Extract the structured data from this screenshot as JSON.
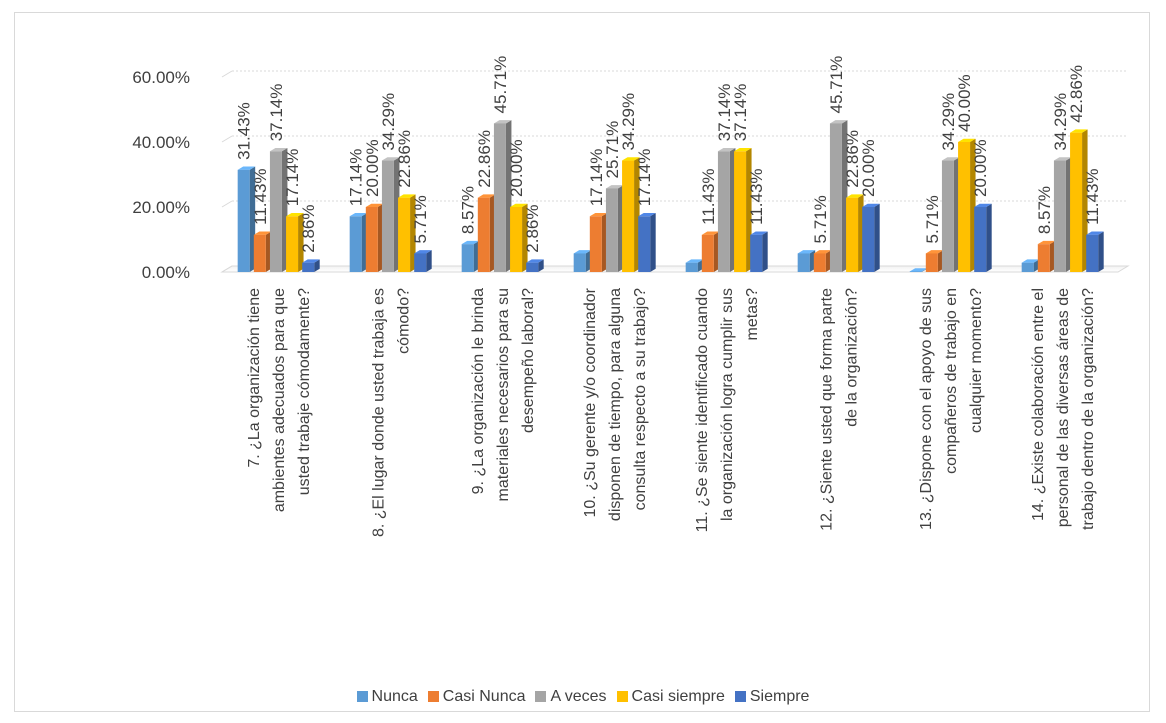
{
  "chart_data": {
    "type": "bar",
    "title": "",
    "xlabel": "",
    "ylabel": "",
    "ylim": [
      0,
      0.6
    ],
    "yticks": [
      "0.00%",
      "20.00%",
      "40.00%",
      "60.00%"
    ],
    "grid": true,
    "legend_position": "bottom",
    "categories": [
      [
        "7. ¿La organización tiene",
        "ambientes adecuados para que",
        "usted trabaje cómodamente?"
      ],
      [
        "8. ¿El lugar donde usted trabaja es",
        "cómodo?"
      ],
      [
        "9. ¿La organización le brinda",
        "materiales necesarios para su",
        "desempeño laboral?"
      ],
      [
        "10. ¿Su gerente y/o coordinador",
        "disponen de tiempo, para alguna",
        "consulta respecto a su trabajo?"
      ],
      [
        "11. ¿Se siente identificado cuando",
        "la organización logra cumplir sus",
        "metas?"
      ],
      [
        "12. ¿Siente usted que forma parte",
        "de la organización?"
      ],
      [
        "13. ¿Dispone con el apoyo de sus",
        "compañeros de trabajo en",
        "cualquier momento?"
      ],
      [
        "14. ¿Existe colaboración entre el",
        "personal de las diversas áreas de",
        "trabajo dentro de la organización?"
      ]
    ],
    "series": [
      {
        "name": "Nunca",
        "color": "#5b9bd5",
        "values": [
          0.3143,
          0.1714,
          0.0857,
          0.0571,
          0.0286,
          0.0571,
          0.0,
          0.0286
        ],
        "labels": [
          "31.43%",
          "17.14%",
          "8.57%",
          "",
          "",
          "",
          "",
          ""
        ]
      },
      {
        "name": "Casi Nunca",
        "color": "#ed7d31",
        "values": [
          0.1143,
          0.2,
          0.2286,
          0.1714,
          0.1143,
          0.0571,
          0.0571,
          0.0857
        ],
        "labels": [
          "11.43%",
          "20.00%",
          "22.86%",
          "17.14%",
          "11.43%",
          "5.71%",
          "5.71%",
          "8.57%"
        ]
      },
      {
        "name": "A veces",
        "color": "#a5a5a5",
        "values": [
          0.3714,
          0.3429,
          0.4571,
          0.2571,
          0.3714,
          0.4571,
          0.3429,
          0.3429
        ],
        "labels": [
          "37.14%",
          "34.29%",
          "45.71%",
          "25.71%",
          "37.14%",
          "45.71%",
          "34.29%",
          "34.29%"
        ]
      },
      {
        "name": "Casi siempre",
        "color": "#ffc000",
        "values": [
          0.1714,
          0.2286,
          0.2,
          0.3429,
          0.3714,
          0.2286,
          0.4,
          0.4286
        ],
        "labels": [
          "17.14%",
          "22.86%",
          "20.00%",
          "34.29%",
          "37.14%",
          "22.86%",
          "40.00%",
          "42.86%"
        ]
      },
      {
        "name": "Siempre",
        "color": "#4472c4",
        "values": [
          0.0286,
          0.0571,
          0.0286,
          0.1714,
          0.1143,
          0.2,
          0.2,
          0.1143
        ],
        "labels": [
          "2.86%",
          "5.71%",
          "2.86%",
          "17.14%",
          "11.43%",
          "20.00%",
          "20.00%",
          "11.43%"
        ]
      }
    ]
  }
}
